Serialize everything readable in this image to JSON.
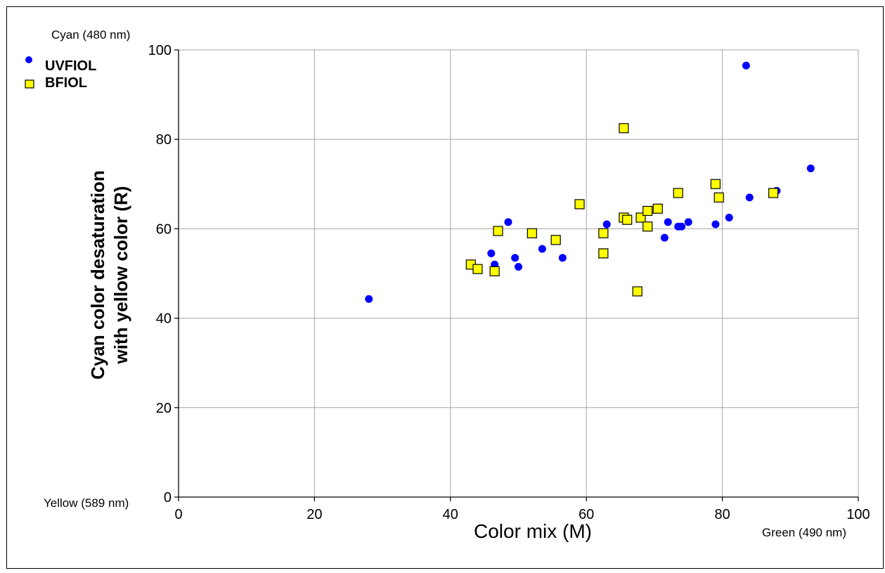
{
  "chart_data": {
    "type": "scatter",
    "xlabel": "Color mix (M)",
    "ylabel_line1": "Cyan color desaturation",
    "ylabel_line2": "with yellow color (R)",
    "corner_labels": {
      "top_left": "Cyan (480 nm)",
      "bottom_left": "Yellow (589 nm)",
      "bottom_right": "Green (490 nm)"
    },
    "xlim": [
      0,
      100
    ],
    "ylim": [
      0,
      100
    ],
    "xticks": [
      0,
      20,
      40,
      60,
      80,
      100
    ],
    "yticks": [
      0,
      20,
      40,
      60,
      80,
      100
    ],
    "grid": true,
    "legend_position": "top-left",
    "series": [
      {
        "name": "UVFIOL",
        "marker": "circle",
        "color": "#0000ff",
        "points": [
          [
            28,
            44.3
          ],
          [
            46,
            54.5
          ],
          [
            46.5,
            52
          ],
          [
            48.5,
            61.5
          ],
          [
            49.5,
            53.5
          ],
          [
            50,
            51.5
          ],
          [
            53.5,
            55.5
          ],
          [
            56.5,
            53.5
          ],
          [
            63,
            61
          ],
          [
            71.5,
            58
          ],
          [
            72,
            61.5
          ],
          [
            73.5,
            60.5
          ],
          [
            74,
            60.5
          ],
          [
            75,
            61.5
          ],
          [
            79,
            61
          ],
          [
            81,
            62.5
          ],
          [
            83.5,
            96.5
          ],
          [
            84,
            67
          ],
          [
            88,
            68.5
          ],
          [
            93,
            73.5
          ]
        ]
      },
      {
        "name": "BFIOL",
        "marker": "square",
        "color": "#ffff00",
        "points": [
          [
            43,
            52
          ],
          [
            44,
            51
          ],
          [
            46.5,
            50.5
          ],
          [
            47,
            59.5
          ],
          [
            52,
            59
          ],
          [
            55.5,
            57.5
          ],
          [
            59,
            65.5
          ],
          [
            62.5,
            59
          ],
          [
            62.5,
            54.5
          ],
          [
            65.5,
            82.5
          ],
          [
            65.5,
            62.5
          ],
          [
            66,
            62
          ],
          [
            67.5,
            46
          ],
          [
            68,
            62.5
          ],
          [
            69,
            64
          ],
          [
            69,
            60.5
          ],
          [
            70.5,
            64.5
          ],
          [
            73.5,
            68
          ],
          [
            79,
            70
          ],
          [
            79.5,
            67
          ],
          [
            87.5,
            68
          ]
        ]
      }
    ]
  }
}
